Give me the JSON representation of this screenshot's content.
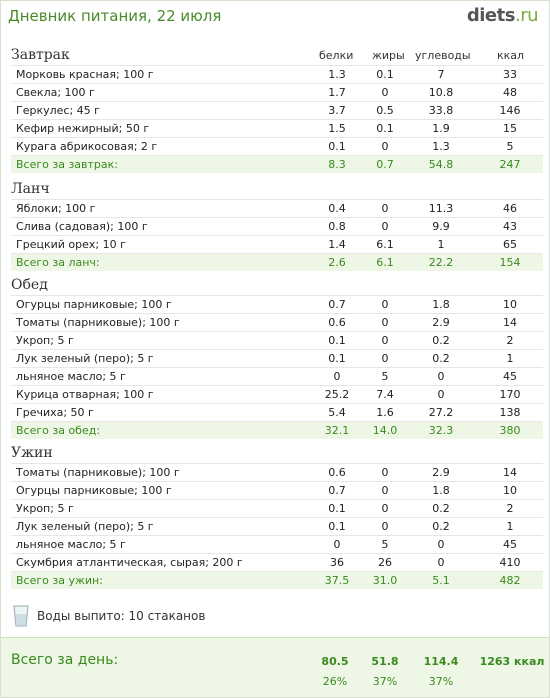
{
  "header": {
    "title": "Дневник питания, 22 июля",
    "logo_main": "diets",
    "logo_tld": ".ru"
  },
  "columns": {
    "protein": "белки",
    "fat": "жиры",
    "carbs": "углеводы",
    "kcal": "ккал"
  },
  "sections": [
    {
      "name": "Завтрак",
      "items": [
        {
          "name": "Морковь красная; 100 г",
          "p": "1.3",
          "f": "0.1",
          "c": "7",
          "k": "33"
        },
        {
          "name": "Свекла; 100 г",
          "p": "1.7",
          "f": "0",
          "c": "10.8",
          "k": "48"
        },
        {
          "name": "Геркулес; 45 г",
          "p": "3.7",
          "f": "0.5",
          "c": "33.8",
          "k": "146"
        },
        {
          "name": "Кефир нежирный; 50 г",
          "p": "1.5",
          "f": "0.1",
          "c": "1.9",
          "k": "15"
        },
        {
          "name": "Курага абрикосовая; 2 г",
          "p": "0.1",
          "f": "0",
          "c": "1.3",
          "k": "5"
        }
      ],
      "total": {
        "name": "Всего за завтрак:",
        "p": "8.3",
        "f": "0.7",
        "c": "54.8",
        "k": "247"
      }
    },
    {
      "name": "Ланч",
      "items": [
        {
          "name": "Яблоки; 100 г",
          "p": "0.4",
          "f": "0",
          "c": "11.3",
          "k": "46"
        },
        {
          "name": "Слива (садовая); 100 г",
          "p": "0.8",
          "f": "0",
          "c": "9.9",
          "k": "43"
        },
        {
          "name": "Грецкий орех; 10 г",
          "p": "1.4",
          "f": "6.1",
          "c": "1",
          "k": "65"
        }
      ],
      "total": {
        "name": "Всего за ланч:",
        "p": "2.6",
        "f": "6.1",
        "c": "22.2",
        "k": "154"
      }
    },
    {
      "name": "Обед",
      "items": [
        {
          "name": "Огурцы парниковые; 100 г",
          "p": "0.7",
          "f": "0",
          "c": "1.8",
          "k": "10"
        },
        {
          "name": "Томаты (парниковые); 100 г",
          "p": "0.6",
          "f": "0",
          "c": "2.9",
          "k": "14"
        },
        {
          "name": "Укроп; 5 г",
          "p": "0.1",
          "f": "0",
          "c": "0.2",
          "k": "2"
        },
        {
          "name": "Лук зеленый (перо); 5 г",
          "p": "0.1",
          "f": "0",
          "c": "0.2",
          "k": "1"
        },
        {
          "name": "льняное масло; 5 г",
          "p": "0",
          "f": "5",
          "c": "0",
          "k": "45"
        },
        {
          "name": "Курица отварная; 100 г",
          "p": "25.2",
          "f": "7.4",
          "c": "0",
          "k": "170"
        },
        {
          "name": "Гречиха; 50 г",
          "p": "5.4",
          "f": "1.6",
          "c": "27.2",
          "k": "138"
        }
      ],
      "total": {
        "name": "Всего за обед:",
        "p": "32.1",
        "f": "14.0",
        "c": "32.3",
        "k": "380"
      }
    },
    {
      "name": "Ужин",
      "items": [
        {
          "name": "Томаты (парниковые); 100 г",
          "p": "0.6",
          "f": "0",
          "c": "2.9",
          "k": "14"
        },
        {
          "name": "Огурцы парниковые; 100 г",
          "p": "0.7",
          "f": "0",
          "c": "1.8",
          "k": "10"
        },
        {
          "name": "Укроп; 5 г",
          "p": "0.1",
          "f": "0",
          "c": "0.2",
          "k": "2"
        },
        {
          "name": "Лук зеленый (перо); 5 г",
          "p": "0.1",
          "f": "0",
          "c": "0.2",
          "k": "1"
        },
        {
          "name": "льняное масло; 5 г",
          "p": "0",
          "f": "5",
          "c": "0",
          "k": "45"
        },
        {
          "name": "Скумбрия атлантическая, сырая; 200 г",
          "p": "36",
          "f": "26",
          "c": "0",
          "k": "410"
        }
      ],
      "total": {
        "name": "Всего за ужин:",
        "p": "37.5",
        "f": "31.0",
        "c": "5.1",
        "k": "482"
      }
    }
  ],
  "water": {
    "label": "Воды выпито: 10 стаканов",
    "icon": "water-glass-icon"
  },
  "day_total": {
    "label": "Всего за день:",
    "p": "80.5",
    "f": "51.8",
    "c": "114.4",
    "k": "1263 ккал",
    "p_pct": "26%",
    "f_pct": "37%",
    "c_pct": "37%"
  }
}
